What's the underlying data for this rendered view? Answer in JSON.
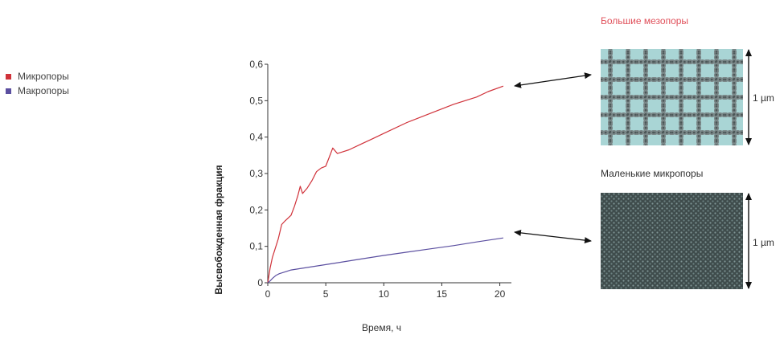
{
  "legend": {
    "items": [
      {
        "label": "Микропоры",
        "color": "#d0323a"
      },
      {
        "label": "Макропоры",
        "color": "#5b4fa0"
      }
    ]
  },
  "images": {
    "top": {
      "title": "Большие мезопоры",
      "title_color": "#e0505a",
      "scale": "1 µm"
    },
    "bottom": {
      "title": "Маленькие микропоры",
      "title_color": "#333333",
      "scale": "1 µm"
    }
  },
  "chart_data": {
    "type": "line",
    "xlabel": "Время, ч",
    "ylabel": "Высвобожденная фракция",
    "xlim": [
      0,
      21
    ],
    "ylim": [
      0,
      0.6
    ],
    "xticks": [
      0,
      5,
      10,
      15,
      20
    ],
    "xtick_labels": [
      "0",
      "5",
      "10",
      "15",
      "20"
    ],
    "yticks": [
      0,
      0.1,
      0.2,
      0.3,
      0.4,
      0.5,
      0.6
    ],
    "ytick_labels": [
      "0",
      "0,1",
      "0,2",
      "0,3",
      "0,4",
      "0,5",
      "0,6"
    ],
    "grid": false,
    "series": [
      {
        "name": "Микропоры",
        "color": "#d0323a",
        "x": [
          0,
          0.2,
          0.4,
          0.6,
          0.9,
          1.2,
          1.5,
          2.0,
          2.3,
          2.6,
          2.8,
          3.0,
          3.4,
          3.8,
          4.2,
          4.6,
          5.0,
          5.3,
          5.6,
          6.0,
          6.5,
          7.0,
          8.0,
          9.0,
          10.0,
          12.0,
          14.0,
          16.0,
          18.0,
          19.0,
          20.3
        ],
        "y": [
          0,
          0.04,
          0.07,
          0.09,
          0.12,
          0.16,
          0.17,
          0.185,
          0.21,
          0.24,
          0.265,
          0.245,
          0.26,
          0.28,
          0.305,
          0.315,
          0.32,
          0.345,
          0.37,
          0.355,
          0.36,
          0.365,
          0.38,
          0.395,
          0.41,
          0.44,
          0.465,
          0.49,
          0.51,
          0.525,
          0.54
        ]
      },
      {
        "name": "Макропоры",
        "color": "#5b4fa0",
        "x": [
          0,
          0.2,
          0.4,
          0.7,
          1.0,
          1.5,
          2.0,
          3.0,
          4.0,
          6.0,
          8.0,
          10.0,
          12.0,
          14.0,
          16.0,
          18.0,
          20.3
        ],
        "y": [
          0,
          0.005,
          0.012,
          0.02,
          0.025,
          0.03,
          0.035,
          0.04,
          0.045,
          0.055,
          0.065,
          0.075,
          0.084,
          0.093,
          0.102,
          0.112,
          0.123
        ]
      }
    ],
    "annotations": [
      {
        "type": "double-arrow",
        "from_series": "Микропоры",
        "to_image": "top"
      },
      {
        "type": "double-arrow",
        "from_series": "Макропоры",
        "to_image": "bottom"
      }
    ]
  }
}
